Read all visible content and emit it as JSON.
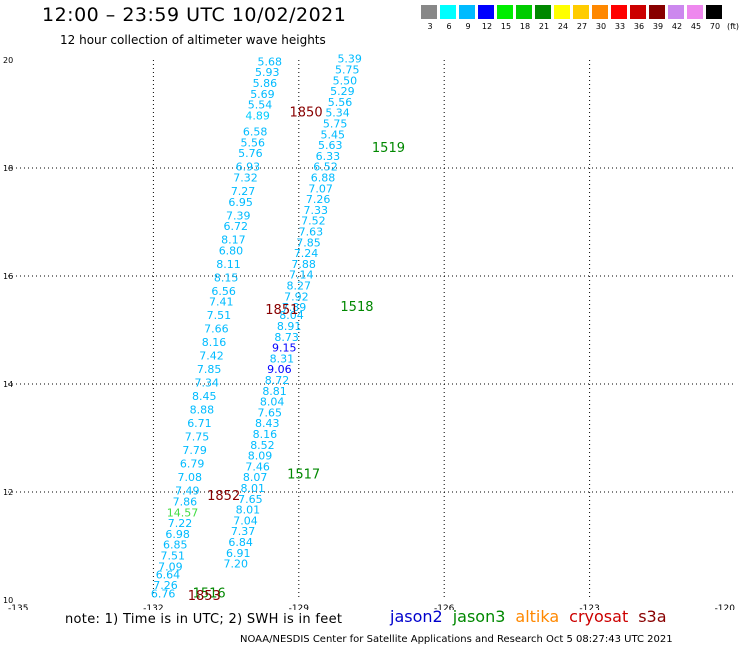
{
  "title": "12:00 – 23:59 UTC 10/02/2021",
  "subtitle": "12 hour collection of altimeter wave heights",
  "note": "note:  1) Time is in UTC;  2) SWH is in feet",
  "footer": "NOAA/NESDIS Center for Satellite Applications and Research    Oct  5 08:27:43 UTC 2021",
  "legend": [
    {
      "name": "jason2",
      "color": "#0000cc"
    },
    {
      "name": "jason3",
      "color": "#008800"
    },
    {
      "name": "altika",
      "color": "#ff8800"
    },
    {
      "name": "cryosat",
      "color": "#cc0000"
    },
    {
      "name": "s3a",
      "color": "#880000"
    }
  ],
  "colorbar": {
    "unit": "(ft)",
    "colors": [
      "#888888",
      "#00ffff",
      "#00bbff",
      "#0000ff",
      "#00ee00",
      "#00cc00",
      "#008800",
      "#ffff00",
      "#ffcc00",
      "#ff8800",
      "#ff0000",
      "#cc0000",
      "#880000",
      "#cc88ee",
      "#ee88ee",
      "#000000"
    ],
    "labels": [
      "3",
      "6",
      "9",
      "12",
      "15",
      "18",
      "21",
      "24",
      "27",
      "30",
      "33",
      "36",
      "39",
      "42",
      "45",
      "70"
    ]
  },
  "chart_data": {
    "type": "scatter",
    "xlim": [
      -135,
      -120
    ],
    "ylim": [
      10,
      20
    ],
    "xticks": [
      "-135",
      "-132",
      "-129",
      "-126",
      "-123",
      "-120"
    ],
    "yticks": [
      "10",
      "12",
      "14",
      "16",
      "18",
      "20"
    ],
    "grid": true,
    "series": [
      {
        "name": "track-a",
        "points": [
          {
            "lon": -129.6,
            "lat": 19.9,
            "v": "5.68",
            "c": "#00bbff"
          },
          {
            "lon": -129.65,
            "lat": 19.7,
            "v": "5.93",
            "c": "#00bbff"
          },
          {
            "lon": -129.7,
            "lat": 19.5,
            "v": "5.86",
            "c": "#00bbff"
          },
          {
            "lon": -129.75,
            "lat": 19.3,
            "v": "5.69",
            "c": "#00bbff"
          },
          {
            "lon": -129.8,
            "lat": 19.1,
            "v": "5.54",
            "c": "#00bbff"
          },
          {
            "lon": -129.85,
            "lat": 18.9,
            "v": "4.89",
            "c": "#00ccff"
          },
          {
            "lon": -129.9,
            "lat": 18.6,
            "v": "6.58",
            "c": "#00bbff"
          },
          {
            "lon": -129.95,
            "lat": 18.4,
            "v": "5.56",
            "c": "#00bbff"
          },
          {
            "lon": -130.0,
            "lat": 18.2,
            "v": "5.76",
            "c": "#00bbff"
          },
          {
            "lon": -130.05,
            "lat": 17.95,
            "v": "6.93",
            "c": "#00bbff"
          },
          {
            "lon": -130.1,
            "lat": 17.75,
            "v": "7.32",
            "c": "#00bbff"
          },
          {
            "lon": -130.15,
            "lat": 17.5,
            "v": "7.27",
            "c": "#00bbff"
          },
          {
            "lon": -130.2,
            "lat": 17.3,
            "v": "6.95",
            "c": "#00bbff"
          },
          {
            "lon": -130.25,
            "lat": 17.05,
            "v": "7.39",
            "c": "#00bbff"
          },
          {
            "lon": -130.3,
            "lat": 16.85,
            "v": "6.72",
            "c": "#00bbff"
          },
          {
            "lon": -130.35,
            "lat": 16.6,
            "v": "8.17",
            "c": "#00bbff"
          },
          {
            "lon": -130.4,
            "lat": 16.4,
            "v": "6.80",
            "c": "#00bbff"
          },
          {
            "lon": -130.45,
            "lat": 16.15,
            "v": "8.11",
            "c": "#00bbff"
          },
          {
            "lon": -130.5,
            "lat": 15.9,
            "v": "8.15",
            "c": "#00bbff"
          },
          {
            "lon": -130.55,
            "lat": 15.65,
            "v": "6.56",
            "c": "#00bbff"
          },
          {
            "lon": -130.6,
            "lat": 15.45,
            "v": "7.41",
            "c": "#00bbff"
          },
          {
            "lon": -130.65,
            "lat": 15.2,
            "v": "7.51",
            "c": "#00bbff"
          },
          {
            "lon": -130.7,
            "lat": 14.95,
            "v": "7.66",
            "c": "#00bbff"
          },
          {
            "lon": -130.75,
            "lat": 14.7,
            "v": "8.16",
            "c": "#00bbff"
          },
          {
            "lon": -130.8,
            "lat": 14.45,
            "v": "7.42",
            "c": "#00bbff"
          },
          {
            "lon": -130.85,
            "lat": 14.2,
            "v": "7.85",
            "c": "#00bbff"
          },
          {
            "lon": -130.9,
            "lat": 13.95,
            "v": "7.34",
            "c": "#00bbff"
          },
          {
            "lon": -130.95,
            "lat": 13.7,
            "v": "8.45",
            "c": "#00bbff"
          },
          {
            "lon": -131.0,
            "lat": 13.45,
            "v": "8.88",
            "c": "#00bbff"
          },
          {
            "lon": -131.05,
            "lat": 13.2,
            "v": "6.71",
            "c": "#00bbff"
          },
          {
            "lon": -131.1,
            "lat": 12.95,
            "v": "7.75",
            "c": "#00bbff"
          },
          {
            "lon": -131.15,
            "lat": 12.7,
            "v": "7.79",
            "c": "#00bbff"
          },
          {
            "lon": -131.2,
            "lat": 12.45,
            "v": "6.79",
            "c": "#00bbff"
          },
          {
            "lon": -131.25,
            "lat": 12.2,
            "v": "7.08",
            "c": "#00bbff"
          },
          {
            "lon": -131.3,
            "lat": 11.95,
            "v": "7.49",
            "c": "#00bbff"
          },
          {
            "lon": -131.35,
            "lat": 11.75,
            "v": "7.86",
            "c": "#00bbff"
          },
          {
            "lon": -131.4,
            "lat": 11.55,
            "v": "14.57",
            "c": "#44dd44"
          },
          {
            "lon": -131.45,
            "lat": 11.35,
            "v": "7.22",
            "c": "#00bbff"
          },
          {
            "lon": -131.5,
            "lat": 11.15,
            "v": "6.98",
            "c": "#00bbff"
          },
          {
            "lon": -131.55,
            "lat": 10.95,
            "v": "6.85",
            "c": "#00bbff"
          },
          {
            "lon": -131.6,
            "lat": 10.75,
            "v": "7.51",
            "c": "#00bbff"
          },
          {
            "lon": -131.65,
            "lat": 10.55,
            "v": "7.09",
            "c": "#00bbff"
          },
          {
            "lon": -131.7,
            "lat": 10.4,
            "v": "6.64",
            "c": "#00bbff"
          },
          {
            "lon": -131.75,
            "lat": 10.2,
            "v": "7.26",
            "c": "#00bbff"
          },
          {
            "lon": -131.8,
            "lat": 10.05,
            "v": "6.76",
            "c": "#00bbff"
          }
        ]
      },
      {
        "name": "track-b",
        "points": [
          {
            "lon": -127.95,
            "lat": 19.95,
            "v": "5.39",
            "c": "#00bbff"
          },
          {
            "lon": -128.0,
            "lat": 19.75,
            "v": "5.75",
            "c": "#00bbff"
          },
          {
            "lon": -128.05,
            "lat": 19.55,
            "v": "5.50",
            "c": "#00bbff"
          },
          {
            "lon": -128.1,
            "lat": 19.35,
            "v": "5.29",
            "c": "#00bbff"
          },
          {
            "lon": -128.15,
            "lat": 19.15,
            "v": "5.56",
            "c": "#00bbff"
          },
          {
            "lon": -128.2,
            "lat": 18.95,
            "v": "5.34",
            "c": "#00bbff"
          },
          {
            "lon": -128.25,
            "lat": 18.75,
            "v": "5.75",
            "c": "#00bbff"
          },
          {
            "lon": -128.3,
            "lat": 18.55,
            "v": "5.45",
            "c": "#00bbff"
          },
          {
            "lon": -128.35,
            "lat": 18.35,
            "v": "5.63",
            "c": "#00bbff"
          },
          {
            "lon": -128.4,
            "lat": 18.15,
            "v": "6.33",
            "c": "#00bbff"
          },
          {
            "lon": -128.45,
            "lat": 17.95,
            "v": "6.52",
            "c": "#00bbff"
          },
          {
            "lon": -128.5,
            "lat": 17.75,
            "v": "6.88",
            "c": "#00bbff"
          },
          {
            "lon": -128.55,
            "lat": 17.55,
            "v": "7.07",
            "c": "#00bbff"
          },
          {
            "lon": -128.6,
            "lat": 17.35,
            "v": "7.26",
            "c": "#00bbff"
          },
          {
            "lon": -128.65,
            "lat": 17.15,
            "v": "7.33",
            "c": "#00bbff"
          },
          {
            "lon": -128.7,
            "lat": 16.95,
            "v": "7.52",
            "c": "#00bbff"
          },
          {
            "lon": -128.75,
            "lat": 16.75,
            "v": "7.63",
            "c": "#00bbff"
          },
          {
            "lon": -128.8,
            "lat": 16.55,
            "v": "7.85",
            "c": "#00bbff"
          },
          {
            "lon": -128.85,
            "lat": 16.35,
            "v": "7.24",
            "c": "#00bbff"
          },
          {
            "lon": -128.9,
            "lat": 16.15,
            "v": "7.88",
            "c": "#00bbff"
          },
          {
            "lon": -128.95,
            "lat": 15.95,
            "v": "7.14",
            "c": "#00bbff"
          },
          {
            "lon": -129.0,
            "lat": 15.75,
            "v": "8.27",
            "c": "#00bbff"
          },
          {
            "lon": -129.05,
            "lat": 15.55,
            "v": "7.92",
            "c": "#00bbff"
          },
          {
            "lon": -129.1,
            "lat": 15.35,
            "v": "7.89",
            "c": "#00bbff"
          },
          {
            "lon": -129.15,
            "lat": 15.2,
            "v": "8.04",
            "c": "#00bbff"
          },
          {
            "lon": -129.2,
            "lat": 15.0,
            "v": "8.91",
            "c": "#00bbff"
          },
          {
            "lon": -129.25,
            "lat": 14.8,
            "v": "8.73",
            "c": "#00bbff"
          },
          {
            "lon": -129.3,
            "lat": 14.6,
            "v": "9.15",
            "c": "#0000ff"
          },
          {
            "lon": -129.35,
            "lat": 14.4,
            "v": "8.31",
            "c": "#00bbff"
          },
          {
            "lon": -129.4,
            "lat": 14.2,
            "v": "9.06",
            "c": "#0000ff"
          },
          {
            "lon": -129.45,
            "lat": 14.0,
            "v": "8.72",
            "c": "#00bbff"
          },
          {
            "lon": -129.5,
            "lat": 13.8,
            "v": "8.81",
            "c": "#00bbff"
          },
          {
            "lon": -129.55,
            "lat": 13.6,
            "v": "8.04",
            "c": "#00bbff"
          },
          {
            "lon": -129.6,
            "lat": 13.4,
            "v": "7.65",
            "c": "#00bbff"
          },
          {
            "lon": -129.65,
            "lat": 13.2,
            "v": "8.43",
            "c": "#00bbff"
          },
          {
            "lon": -129.7,
            "lat": 13.0,
            "v": "8.16",
            "c": "#00bbff"
          },
          {
            "lon": -129.75,
            "lat": 12.8,
            "v": "8.52",
            "c": "#00bbff"
          },
          {
            "lon": -129.8,
            "lat": 12.6,
            "v": "8.09",
            "c": "#00bbff"
          },
          {
            "lon": -129.85,
            "lat": 12.4,
            "v": "7.46",
            "c": "#00bbff"
          },
          {
            "lon": -129.9,
            "lat": 12.2,
            "v": "8.07",
            "c": "#00bbff"
          },
          {
            "lon": -129.95,
            "lat": 12.0,
            "v": "8.01",
            "c": "#00bbff"
          },
          {
            "lon": -130.0,
            "lat": 11.8,
            "v": "7.65",
            "c": "#00bbff"
          },
          {
            "lon": -130.05,
            "lat": 11.6,
            "v": "8.01",
            "c": "#00bbff"
          },
          {
            "lon": -130.1,
            "lat": 11.4,
            "v": "7.04",
            "c": "#00bbff"
          },
          {
            "lon": -130.15,
            "lat": 11.2,
            "v": "7.37",
            "c": "#00bbff"
          },
          {
            "lon": -130.2,
            "lat": 11.0,
            "v": "6.84",
            "c": "#00bbff"
          },
          {
            "lon": -130.25,
            "lat": 10.8,
            "v": "6.91",
            "c": "#00bbff"
          },
          {
            "lon": -130.3,
            "lat": 10.6,
            "v": "7.20",
            "c": "#00bbff"
          }
        ]
      }
    ],
    "time_labels": [
      {
        "lon": -128.85,
        "lat": 18.95,
        "t": "1850",
        "c": "#880000"
      },
      {
        "lon": -127.15,
        "lat": 18.3,
        "t": "1519",
        "c": "#008800"
      },
      {
        "lon": -129.35,
        "lat": 15.3,
        "t": "1851",
        "c": "#880000"
      },
      {
        "lon": -127.8,
        "lat": 15.35,
        "t": "1518",
        "c": "#008800"
      },
      {
        "lon": -128.9,
        "lat": 12.25,
        "t": "1517",
        "c": "#008800"
      },
      {
        "lon": -130.55,
        "lat": 11.85,
        "t": "1852",
        "c": "#880000"
      },
      {
        "lon": -130.85,
        "lat": 10.05,
        "t": "1516",
        "c": "#008800"
      },
      {
        "lon": -130.95,
        "lat": 10.0,
        "t": "1853",
        "c": "#880000"
      }
    ]
  }
}
